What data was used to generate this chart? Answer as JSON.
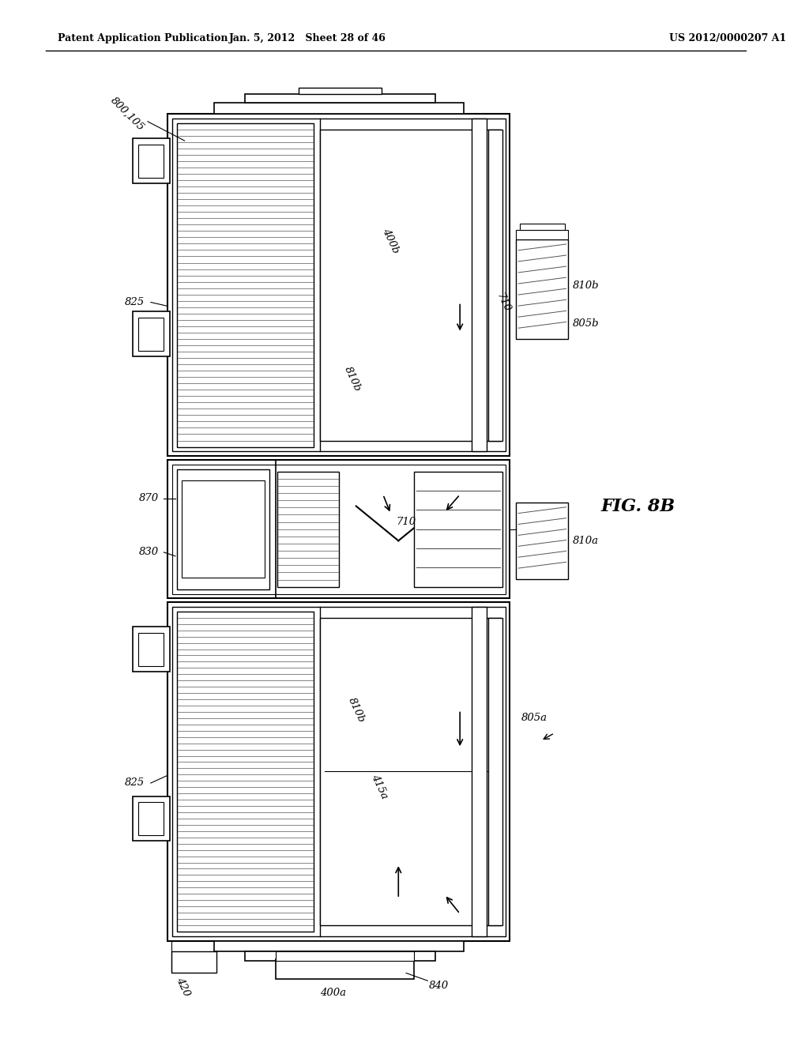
{
  "header_left": "Patent Application Publication",
  "header_center": "Jan. 5, 2012   Sheet 28 of 46",
  "header_right": "US 2012/0000207 A1",
  "fig_label": "FIG. 8B",
  "bg_color": "#ffffff",
  "line_color": "#000000"
}
